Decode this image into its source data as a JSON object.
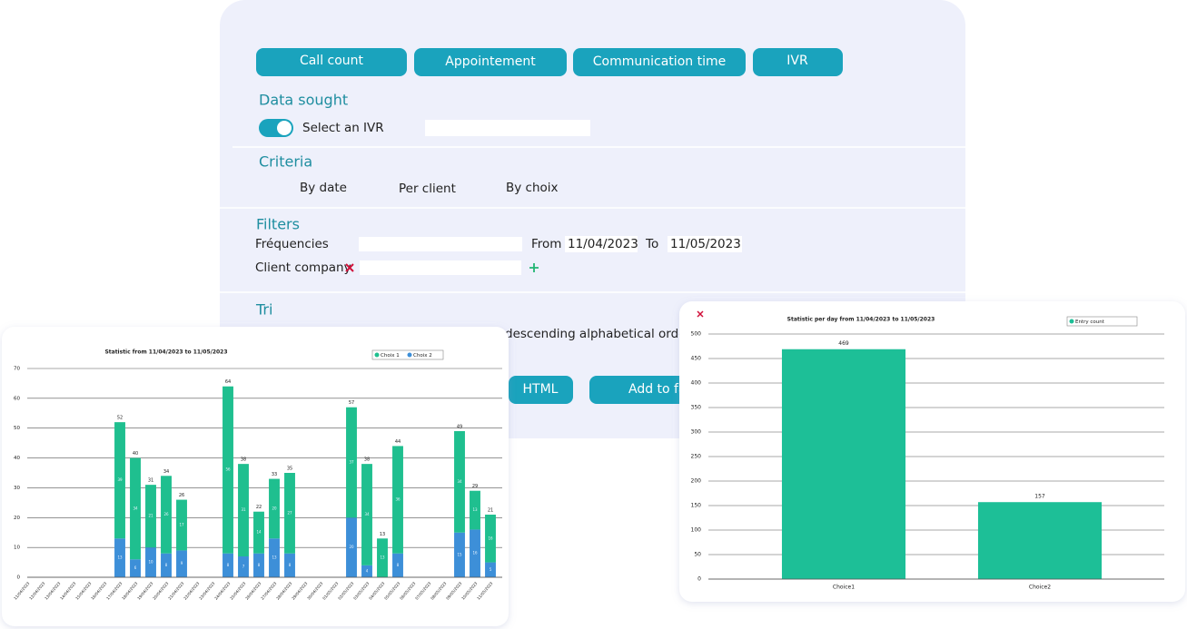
{
  "tabs": [
    "Call count",
    "Appointement",
    "Communication time",
    "IVR"
  ],
  "data_sought": {
    "title": "Data sought",
    "toggle_label": "Select an IVR"
  },
  "criteria": {
    "title": "Criteria",
    "options": [
      "By date",
      "Per client",
      "By choix"
    ]
  },
  "filters": {
    "title": "Filters",
    "frequency_label": "Fréquencies",
    "from_label": "From",
    "from": "11/04/2023",
    "to_label": "To",
    "to": "11/05/2023",
    "client_label": "Client company"
  },
  "sort": {
    "title": "Tri",
    "order": "descending alphabetical order"
  },
  "actions": [
    "HTML",
    "Add to favorites"
  ],
  "chart_data": [
    {
      "type": "bar",
      "stacked": true,
      "title": "Statistic from 11/04/2023 to 11/05/2023",
      "categories": [
        "11/04/2023",
        "12/04/2023",
        "13/04/2023",
        "14/04/2023",
        "15/04/2023",
        "16/04/2023",
        "17/04/2023",
        "18/04/2023",
        "19/04/2023",
        "20/04/2023",
        "21/04/2023",
        "22/04/2023",
        "23/04/2023",
        "24/04/2023",
        "25/04/2023",
        "26/04/2023",
        "27/04/2023",
        "28/04/2023",
        "29/04/2023",
        "30/04/2023",
        "01/05/2023",
        "02/05/2023",
        "03/05/2023",
        "04/05/2023",
        "05/05/2023",
        "06/05/2023",
        "07/05/2023",
        "08/05/2023",
        "09/05/2023",
        "10/05/2023",
        "11/05/2023"
      ],
      "series": [
        {
          "name": "Choix 2",
          "color": "#3d8fd8",
          "values": [
            null,
            null,
            null,
            null,
            null,
            null,
            13,
            6,
            10,
            8,
            9,
            null,
            null,
            8,
            7,
            8,
            13,
            8,
            null,
            null,
            null,
            20,
            4,
            0,
            8,
            null,
            null,
            null,
            15,
            16,
            5
          ]
        },
        {
          "name": "Choix 1",
          "color": "#1fbf8f",
          "values": [
            null,
            null,
            null,
            null,
            null,
            null,
            39,
            34,
            21,
            26,
            17,
            null,
            null,
            56,
            31,
            14,
            20,
            27,
            null,
            null,
            null,
            37,
            34,
            13,
            36,
            null,
            null,
            null,
            34,
            13,
            16
          ]
        }
      ],
      "totals": [
        null,
        null,
        null,
        null,
        null,
        null,
        52,
        40,
        31,
        34,
        26,
        null,
        null,
        64,
        38,
        22,
        33,
        35,
        null,
        null,
        null,
        57,
        38,
        13,
        44,
        null,
        null,
        null,
        49,
        29,
        21
      ],
      "legend_order": [
        "Choix 1",
        "Choix 2"
      ],
      "ylim": [
        0,
        70
      ],
      "yticks": [
        0,
        10,
        20,
        30,
        40,
        50,
        60,
        70
      ],
      "grid": true,
      "legend": "top-right"
    },
    {
      "type": "bar",
      "title": "Statistic per day from 11/04/2023 to 11/05/2023",
      "categories": [
        "Choice1",
        "Choice2"
      ],
      "series": [
        {
          "name": "Entry count",
          "color": "#1dbf97",
          "values": [
            469,
            157
          ]
        }
      ],
      "ylim": [
        0,
        500
      ],
      "yticks": [
        0,
        50,
        100,
        150,
        200,
        250,
        300,
        350,
        400,
        450,
        500
      ],
      "grid": true,
      "legend": "top-right"
    }
  ]
}
